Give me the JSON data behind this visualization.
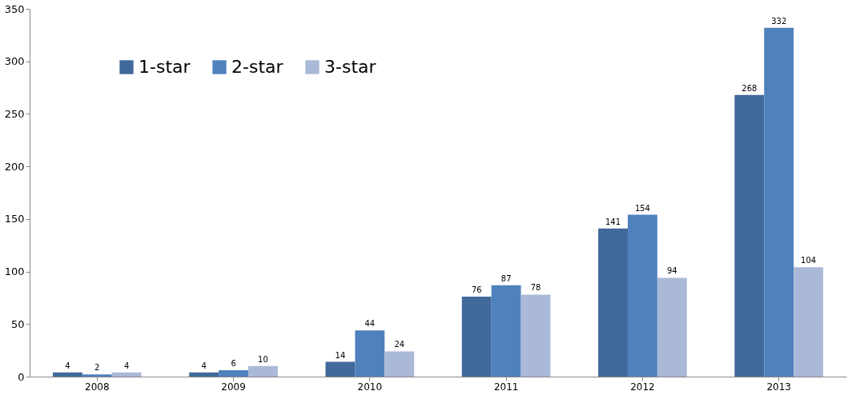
{
  "chart_data": {
    "type": "bar",
    "categories": [
      "2008",
      "2009",
      "2010",
      "2011",
      "2012",
      "2013"
    ],
    "series": [
      {
        "name": "1-star",
        "color": "#41699b",
        "values": [
          4,
          4,
          14,
          76,
          141,
          268
        ]
      },
      {
        "name": "2-star",
        "color": "#4f81bd",
        "values": [
          2,
          6,
          44,
          87,
          154,
          332
        ]
      },
      {
        "name": "3-star",
        "color": "#aab9d8",
        "values": [
          4,
          10,
          24,
          78,
          94,
          104
        ]
      }
    ],
    "ylim": [
      0,
      350
    ],
    "yticks": [
      0,
      50,
      100,
      150,
      200,
      250,
      300,
      350
    ],
    "grid": false,
    "legend": "top left",
    "data_labels": true
  }
}
